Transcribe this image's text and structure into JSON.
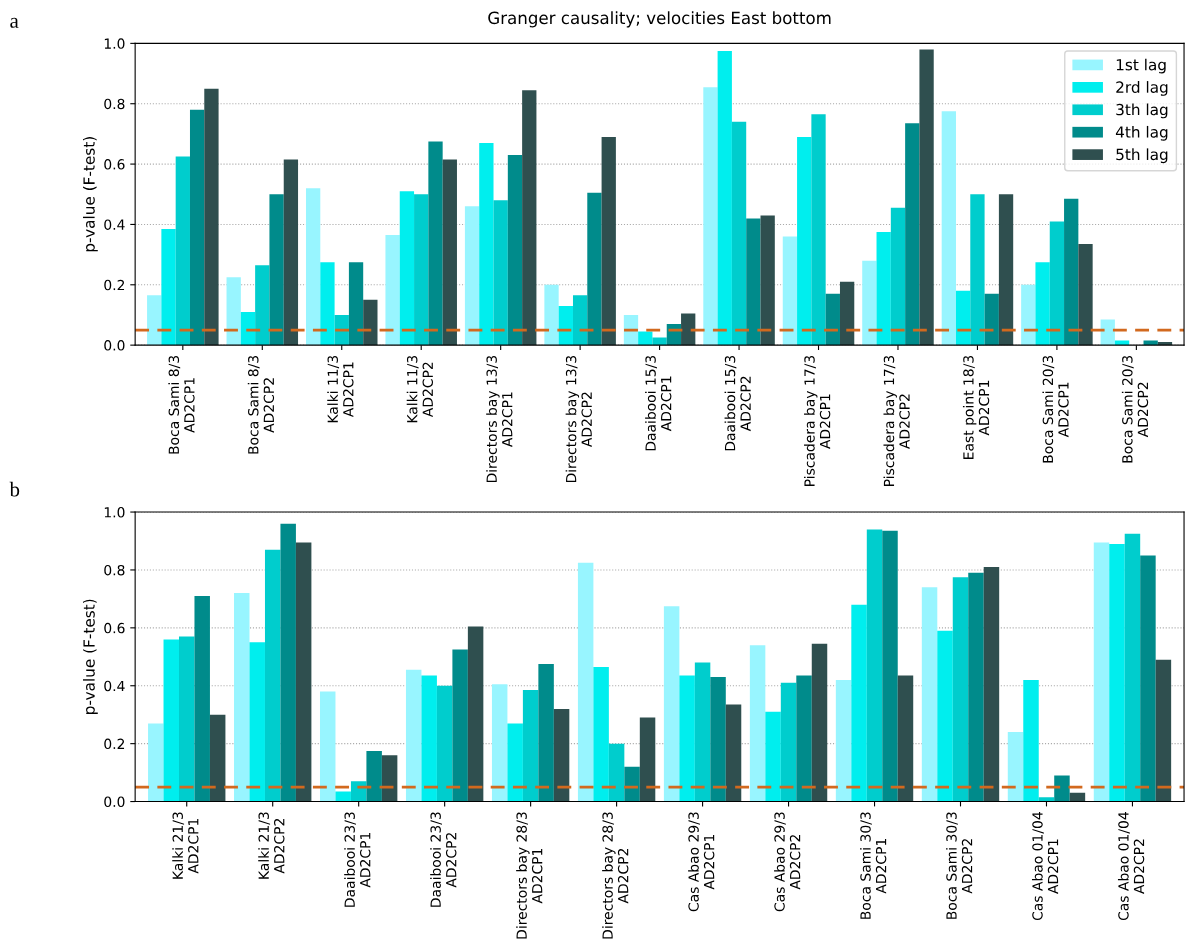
{
  "chart_data": [
    {
      "type": "bar",
      "title": "Granger causality; velocities East bottom",
      "ylabel": "p-value (F-test)",
      "annotations": [
        "a"
      ],
      "categories": [
        "Boca Sami 8/3\nAD2CP1",
        "Boca Sami 8/3\nAD2CP2",
        "Kalki 11/3\nAD2CP1",
        "Kalki 11/3\nAD2CP2",
        "Directors bay 13/3\nAD2CP1",
        "Directors bay 13/3\nAD2CP2",
        "Daaibooi 15/3\nAD2CP1",
        "Daaibooi 15/3\nAD2CP2",
        "Piscadera bay 17/3\nAD2CP1",
        "Piscadera bay 17/3\nAD2CP2",
        "East point 18/3\nAD2CP1",
        "Boca Sami 20/3\nAD2CP1",
        "Boca Sami 20/3\nAD2CP2"
      ],
      "series": [
        {
          "name": "1st lag",
          "color": "#98f5ff",
          "values": [
            0.165,
            0.225,
            0.52,
            0.365,
            0.46,
            0.2,
            0.1,
            0.855,
            0.36,
            0.28,
            0.775,
            0.2,
            0.085
          ]
        },
        {
          "name": "2rd lag",
          "color": "#00eeee",
          "values": [
            0.385,
            0.11,
            0.275,
            0.51,
            0.67,
            0.13,
            0.045,
            0.975,
            0.69,
            0.375,
            0.18,
            0.275,
            0.015
          ]
        },
        {
          "name": "3th lag",
          "color": "#00cdcd",
          "values": [
            0.625,
            0.265,
            0.1,
            0.5,
            0.48,
            0.165,
            0.025,
            0.74,
            0.765,
            0.455,
            0.5,
            0.41,
            null
          ]
        },
        {
          "name": "4th lag",
          "color": "#008b8b",
          "values": [
            0.78,
            0.5,
            0.275,
            0.675,
            0.63,
            0.505,
            0.07,
            0.42,
            0.17,
            0.735,
            0.17,
            0.485,
            0.015
          ]
        },
        {
          "name": "5th lag",
          "color": "#2f4f4f",
          "values": [
            0.85,
            0.615,
            0.15,
            0.615,
            0.845,
            0.69,
            0.105,
            0.43,
            0.21,
            0.98,
            0.5,
            0.335,
            0.01
          ]
        }
      ],
      "ylim": [
        0,
        1
      ],
      "yticks": [
        {
          "value": 0,
          "label": "0.0"
        },
        {
          "value": 0.2,
          "label": "0.2"
        },
        {
          "value": 0.4,
          "label": "0.4"
        },
        {
          "value": 0.6,
          "label": "0.6"
        },
        {
          "value": 0.8,
          "label": "0.8"
        },
        {
          "value": 1,
          "label": "1.0"
        }
      ],
      "ref_lines": [
        {
          "axis": "y",
          "value": 0.05,
          "color": "#d2691e",
          "line_style": "dashed"
        }
      ],
      "grid": "y",
      "legend": "top right"
    },
    {
      "type": "bar",
      "ylabel": "p-value (F-test)",
      "annotations": [
        "b"
      ],
      "categories": [
        "Kalki 21/3\nAD2CP1",
        "Kalki 21/3\nAD2CP2",
        "Daaibooi 23/3\nAD2CP1",
        "Daaibooi 23/3\nAD2CP2",
        "Directors bay 28/3\nAD2CP1",
        "Directors bay 28/3\nAD2CP2",
        "Cas Abao 29/3\nAD2CP1",
        "Cas Abao 29/3\nAD2CP2",
        "Boca Sami 30/3\nAD2CP1",
        "Boca Sami 30/3\nAD2CP2",
        "Cas Abao 01/04\nAD2CP1",
        "Cas Abao 01/04\nAD2CP2"
      ],
      "series": [
        {
          "color": "#98f5ff",
          "values": [
            0.27,
            0.72,
            0.38,
            0.455,
            0.405,
            0.825,
            0.675,
            0.54,
            0.42,
            0.74,
            0.24,
            0.895
          ]
        },
        {
          "color": "#00eeee",
          "values": [
            0.56,
            0.55,
            0.035,
            0.435,
            0.27,
            0.465,
            0.435,
            0.31,
            0.68,
            0.59,
            0.42,
            0.89
          ]
        },
        {
          "color": "#00cdcd",
          "values": [
            0.57,
            0.87,
            0.07,
            0.4,
            0.385,
            0.2,
            0.48,
            0.41,
            0.94,
            0.775,
            0.015,
            0.925
          ]
        },
        {
          "color": "#008b8b",
          "values": [
            0.71,
            0.96,
            0.175,
            0.525,
            0.475,
            0.12,
            0.43,
            0.435,
            0.935,
            0.79,
            0.09,
            0.85
          ]
        },
        {
          "color": "#2f4f4f",
          "values": [
            0.3,
            0.895,
            0.16,
            0.605,
            0.32,
            0.29,
            0.335,
            0.545,
            0.435,
            0.81,
            0.03,
            0.49
          ]
        }
      ],
      "ylim": [
        0,
        1
      ],
      "yticks": [
        {
          "value": 0,
          "label": "0.0"
        },
        {
          "value": 0.2,
          "label": "0.2"
        },
        {
          "value": 0.4,
          "label": "0.4"
        },
        {
          "value": 0.6,
          "label": "0.6"
        },
        {
          "value": 0.8,
          "label": "0.8"
        },
        {
          "value": 1,
          "label": "1.0"
        }
      ],
      "ref_lines": [
        {
          "axis": "y",
          "value": 0.05,
          "color": "#d2691e",
          "line_style": "dashed"
        }
      ],
      "grid": "y"
    }
  ]
}
